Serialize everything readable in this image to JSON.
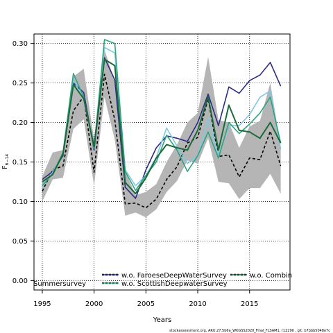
{
  "chart_data": {
    "type": "line",
    "xlabel": "Years",
    "ylabel_main": "F",
    "ylabel_sub": "6−14",
    "xlim": [
      1994.2,
      2018.9
    ],
    "ylim": [
      -0.012,
      0.312
    ],
    "x_ticks": [
      1995,
      2000,
      2005,
      2010,
      2015
    ],
    "y_ticks": [
      0.0,
      0.05,
      0.1,
      0.15,
      0.2,
      0.25,
      0.3
    ],
    "y_tick_labels": [
      "0.00",
      "0.05",
      "0.10",
      "0.15",
      "0.20",
      "0.25",
      "0.30"
    ],
    "grid": true,
    "x": [
      1995,
      1996,
      1997,
      1998,
      1999,
      2000,
      2001,
      2002,
      2003,
      2004,
      2005,
      2006,
      2007,
      2008,
      2009,
      2010,
      2011,
      2012,
      2013,
      2014,
      2015,
      2016,
      2017,
      2018
    ],
    "band": {
      "upper": [
        0.132,
        0.162,
        0.165,
        0.258,
        0.268,
        0.178,
        0.292,
        0.252,
        0.138,
        0.108,
        0.112,
        0.122,
        0.15,
        0.172,
        0.2,
        0.212,
        0.283,
        0.203,
        0.2,
        0.168,
        0.195,
        0.202,
        0.25,
        0.17
      ],
      "lower": [
        0.1,
        0.128,
        0.13,
        0.192,
        0.204,
        0.12,
        0.232,
        0.178,
        0.082,
        0.086,
        0.08,
        0.09,
        0.112,
        0.126,
        0.152,
        0.148,
        0.18,
        0.125,
        0.123,
        0.103,
        0.117,
        0.117,
        0.135,
        0.11
      ],
      "color": "#b5b5b5"
    },
    "series": [
      {
        "values": [
          0.113,
          0.14,
          0.145,
          0.215,
          0.233,
          0.137,
          0.261,
          0.203,
          0.097,
          0.098,
          0.092,
          0.103,
          0.128,
          0.144,
          0.174,
          0.181,
          0.23,
          0.157,
          0.159,
          0.131,
          0.155,
          0.153,
          0.189,
          0.145
        ],
        "color": "#000000",
        "width": 1.6,
        "dash": "4,3"
      },
      {
        "values": [
          0.128,
          0.138,
          0.158,
          0.25,
          0.238,
          0.165,
          0.282,
          0.254,
          0.118,
          0.104,
          0.14,
          0.168,
          0.183,
          0.18,
          0.176,
          0.2,
          0.236,
          0.196,
          0.245,
          0.237,
          0.253,
          0.26,
          0.276,
          0.246
        ],
        "color": "#2c2c83",
        "width": 1.6,
        "dash": ""
      },
      {
        "values": [
          0.118,
          0.137,
          0.16,
          0.255,
          0.228,
          0.17,
          0.295,
          0.288,
          0.14,
          0.12,
          0.133,
          0.156,
          0.193,
          0.17,
          0.148,
          0.158,
          0.205,
          0.158,
          0.196,
          0.196,
          0.21,
          0.232,
          0.24,
          0.166
        ],
        "color": "#7ec8e3",
        "width": 1.6,
        "dash": ""
      },
      {
        "values": [
          0.12,
          0.135,
          0.162,
          0.262,
          0.232,
          0.167,
          0.305,
          0.3,
          0.138,
          0.114,
          0.133,
          0.15,
          0.184,
          0.165,
          0.138,
          0.158,
          0.188,
          0.155,
          0.2,
          0.186,
          0.198,
          0.212,
          0.232,
          0.174
        ],
        "color": "#2ea37f",
        "width": 1.6,
        "dash": ""
      },
      {
        "values": [
          0.125,
          0.134,
          0.16,
          0.248,
          0.23,
          0.17,
          0.28,
          0.272,
          0.124,
          0.11,
          0.13,
          0.155,
          0.172,
          0.168,
          0.165,
          0.19,
          0.232,
          0.165,
          0.222,
          0.19,
          0.188,
          0.18,
          0.2,
          0.174
        ],
        "color": "#1a6a3a",
        "width": 2.0,
        "dash": ""
      }
    ],
    "legend": [
      {
        "label": "Summersurvey",
        "color": "#000000",
        "style": "none"
      },
      {
        "label": "w.o. FaroeseDeepWaterSurvey",
        "color": "#2c2c83",
        "style": "dashed"
      },
      {
        "label": "w.o. ScottishDeepwaterSurvey",
        "color": "#2ea37f",
        "style": "dashed"
      },
      {
        "label": "w.o. Combin",
        "color": "#1a6a3a",
        "style": "dashed"
      }
    ]
  },
  "footer": "stockassessment.org, ARU.27.5b6a_WKGSS2020_Final_FLSAM1, r12290 , git: b7bbb5048e7c"
}
